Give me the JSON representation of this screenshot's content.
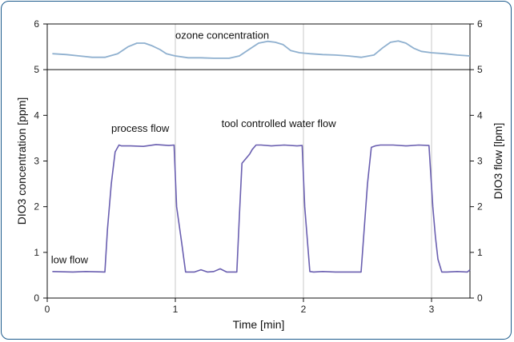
{
  "chart_data": {
    "type": "line",
    "xlabel": "Time [min]",
    "ylabel_left": "DIO3 concentration [ppm]",
    "ylabel_right": "DIO3 flow [lpm]",
    "xlim": [
      0,
      3.3
    ],
    "ylim": [
      0,
      6
    ],
    "x_ticks": [
      "0",
      "1",
      "2",
      "3"
    ],
    "y_ticks_left": [
      "0",
      "1",
      "2",
      "3",
      "4",
      "5",
      "6"
    ],
    "y_ticks_right": [
      "0",
      "1",
      "2",
      "3",
      "4",
      "5",
      "6"
    ],
    "grid": "vertical at x ticks, horizontal at y=5",
    "annotations": [
      "ozone concentration",
      "process flow",
      "tool controlled water flow",
      "low flow"
    ],
    "colors": {
      "ozone": "#8fb0cf",
      "flow": "#6a5fb0",
      "frame": "#1c5a8c"
    },
    "series": [
      {
        "name": "ozone concentration",
        "x": [
          0.04,
          0.15,
          0.25,
          0.35,
          0.45,
          0.55,
          0.63,
          0.7,
          0.76,
          0.82,
          0.88,
          0.93,
          0.97,
          1.0,
          1.1,
          1.2,
          1.3,
          1.42,
          1.5,
          1.58,
          1.65,
          1.72,
          1.78,
          1.84,
          1.9,
          1.97,
          2.05,
          2.15,
          2.25,
          2.35,
          2.45,
          2.55,
          2.62,
          2.68,
          2.74,
          2.8,
          2.86,
          2.92,
          3.0,
          3.1,
          3.2,
          3.3
        ],
        "y": [
          5.35,
          5.33,
          5.3,
          5.27,
          5.27,
          5.35,
          5.5,
          5.58,
          5.58,
          5.52,
          5.44,
          5.35,
          5.32,
          5.3,
          5.26,
          5.26,
          5.25,
          5.25,
          5.3,
          5.45,
          5.58,
          5.62,
          5.6,
          5.55,
          5.42,
          5.37,
          5.35,
          5.33,
          5.32,
          5.3,
          5.27,
          5.32,
          5.48,
          5.6,
          5.63,
          5.58,
          5.47,
          5.4,
          5.37,
          5.35,
          5.32,
          5.3
        ]
      },
      {
        "name": "process flow",
        "x": [
          0.04,
          0.2,
          0.3,
          0.45,
          0.47,
          0.5,
          0.53,
          0.56,
          0.58,
          0.65,
          0.75,
          0.85,
          0.95,
          0.99,
          1.01,
          1.05,
          1.08,
          1.15,
          1.2,
          1.25,
          1.3,
          1.35,
          1.4,
          1.48,
          1.5,
          1.52,
          1.55,
          1.58,
          1.6,
          1.63,
          1.67,
          1.75,
          1.85,
          1.95,
          1.99,
          2.01,
          2.05,
          2.08,
          2.15,
          2.25,
          2.35,
          2.42,
          2.45,
          2.5,
          2.53,
          2.56,
          2.6,
          2.7,
          2.8,
          2.9,
          2.98,
          3.01,
          3.03,
          3.05,
          3.08,
          3.12,
          3.2,
          3.28,
          3.3
        ],
        "y": [
          0.58,
          0.57,
          0.58,
          0.57,
          1.5,
          2.5,
          3.2,
          3.35,
          3.33,
          3.33,
          3.32,
          3.36,
          3.34,
          3.35,
          2.0,
          1.2,
          0.57,
          0.57,
          0.62,
          0.57,
          0.58,
          0.64,
          0.57,
          0.57,
          1.8,
          2.95,
          3.05,
          3.15,
          3.25,
          3.35,
          3.35,
          3.33,
          3.35,
          3.33,
          3.34,
          2.0,
          0.58,
          0.57,
          0.58,
          0.57,
          0.57,
          0.57,
          0.57,
          2.5,
          3.3,
          3.33,
          3.35,
          3.35,
          3.33,
          3.35,
          3.34,
          2.0,
          1.35,
          0.85,
          0.57,
          0.57,
          0.58,
          0.57,
          0.62
        ]
      }
    ]
  }
}
